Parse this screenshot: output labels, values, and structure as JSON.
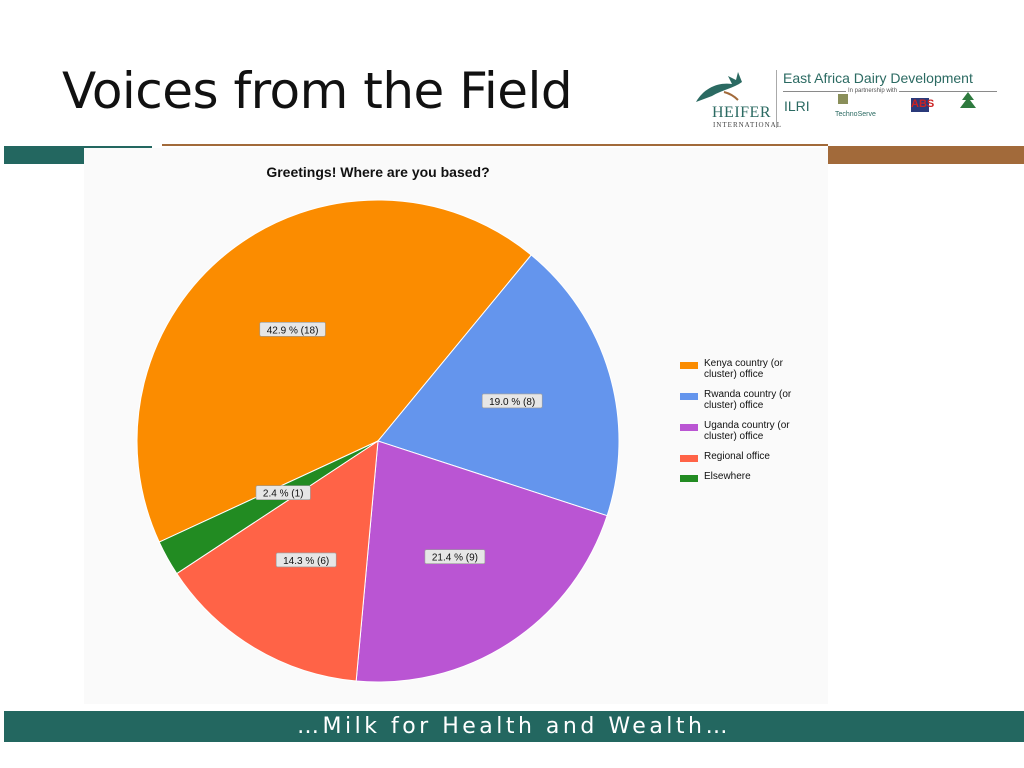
{
  "slide": {
    "title": "Voices from the Field",
    "footer": "…Milk for Health and Wealth…"
  },
  "logos": {
    "project": "East Africa Dairy Development",
    "partnership": "In partnership with",
    "heifer": "HEIFER",
    "heifer_sub": "INTERNATIONAL",
    "ilri": "ILRI",
    "technoserve": "TechnoServe",
    "abs": "ABS"
  },
  "colors": {
    "teal": "#236760",
    "brown": "#a26a3a"
  },
  "chart_data": {
    "type": "pie",
    "title": "Greetings! Where are you based?",
    "legend_position": "right",
    "slices": [
      {
        "name": "Kenya country (or cluster) office",
        "legend": [
          "Kenya country (or",
          "cluster) office"
        ],
        "count": 18,
        "percent": 42.9,
        "label": "42.9 % (18)",
        "color": "#fb8c00"
      },
      {
        "name": "Rwanda country (or cluster) office",
        "legend": [
          "Rwanda country (or",
          "cluster) office"
        ],
        "count": 8,
        "percent": 19.0,
        "label": "19.0 % (8)",
        "color": "#6495ed"
      },
      {
        "name": "Uganda country (or cluster) office",
        "legend": [
          "Uganda country (or",
          "cluster) office"
        ],
        "count": 9,
        "percent": 21.4,
        "label": "21.4 % (9)",
        "color": "#ba55d3"
      },
      {
        "name": "Regional office",
        "legend": [
          "Regional office"
        ],
        "count": 6,
        "percent": 14.3,
        "label": "14.3 % (6)",
        "color": "#ff6347"
      },
      {
        "name": "Elsewhere",
        "legend": [
          "Elsewhere"
        ],
        "count": 1,
        "percent": 2.4,
        "label": "2.4 % (1)",
        "color": "#228b22"
      }
    ]
  }
}
